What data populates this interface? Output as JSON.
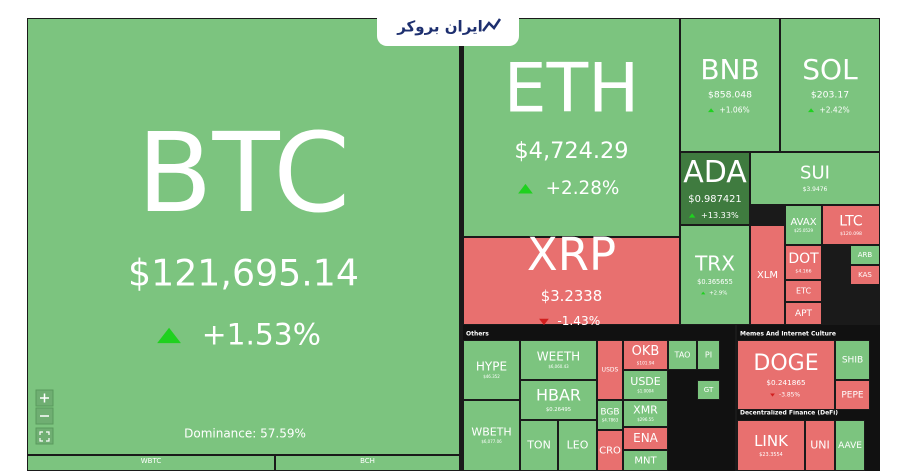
{
  "logo": "ایران بروکر",
  "dominance": "Dominance: 57.59%",
  "sections": [
    "Others",
    "Memes And Internet Culture",
    "Decentralized Finance (DeFi)"
  ],
  "tiles": [
    {
      "symbol": "BTC",
      "price": "$121,695.14",
      "change": "+1.53%"
    },
    {
      "symbol": "ETH",
      "price": "$4,724.29",
      "change": "+2.28%"
    },
    {
      "symbol": "BNB",
      "price": "$858.048",
      "change": "+1.06%"
    },
    {
      "symbol": "SOL",
      "price": "$203.17",
      "change": "+2.42%"
    },
    {
      "symbol": "ADA",
      "price": "$0.987421",
      "change": "+13.33%"
    },
    {
      "symbol": "SUI",
      "price": "$3.9476"
    },
    {
      "symbol": "AVAX",
      "price": "$25.0529"
    },
    {
      "symbol": "LTC",
      "price": "$120.098"
    },
    {
      "symbol": "XRP",
      "price": "$3.2338",
      "change": "-1.43%"
    },
    {
      "symbol": "TRX",
      "price": "$0.365655",
      "change": "+2.9%"
    },
    {
      "symbol": "XLM"
    },
    {
      "symbol": "DOT",
      "price": "$4.166"
    },
    {
      "symbol": "ETC"
    },
    {
      "symbol": "APT"
    },
    {
      "symbol": "ARB"
    },
    {
      "symbol": "KAS"
    },
    {
      "symbol": "HYPE",
      "price": "$46.352"
    },
    {
      "symbol": "WEETH",
      "price": "$6,060.43"
    },
    {
      "symbol": "HBAR",
      "price": "$0.26495"
    },
    {
      "symbol": "WBETH",
      "price": "$6,077.06"
    },
    {
      "symbol": "TON"
    },
    {
      "symbol": "LEO"
    },
    {
      "symbol": "USDS"
    },
    {
      "symbol": "OKB",
      "price": "$101.94"
    },
    {
      "symbol": "USDE",
      "price": "$1.0004"
    },
    {
      "symbol": "TAO"
    },
    {
      "symbol": "PI"
    },
    {
      "symbol": "BGB",
      "price": "$4.7863"
    },
    {
      "symbol": "XMR",
      "price": "$296.55"
    },
    {
      "symbol": "ENA"
    },
    {
      "symbol": "MNT"
    },
    {
      "symbol": "CRO"
    },
    {
      "symbol": "GT"
    },
    {
      "symbol": "DOGE",
      "price": "$0.241865",
      "change": "-3.85%"
    },
    {
      "symbol": "SHIB"
    },
    {
      "symbol": "PEPE"
    },
    {
      "symbol": "LINK",
      "price": "$23.3554"
    },
    {
      "symbol": "UNI"
    },
    {
      "symbol": "AAVE"
    },
    {
      "symbol": "WBTC"
    },
    {
      "symbol": "BCH"
    }
  ]
}
